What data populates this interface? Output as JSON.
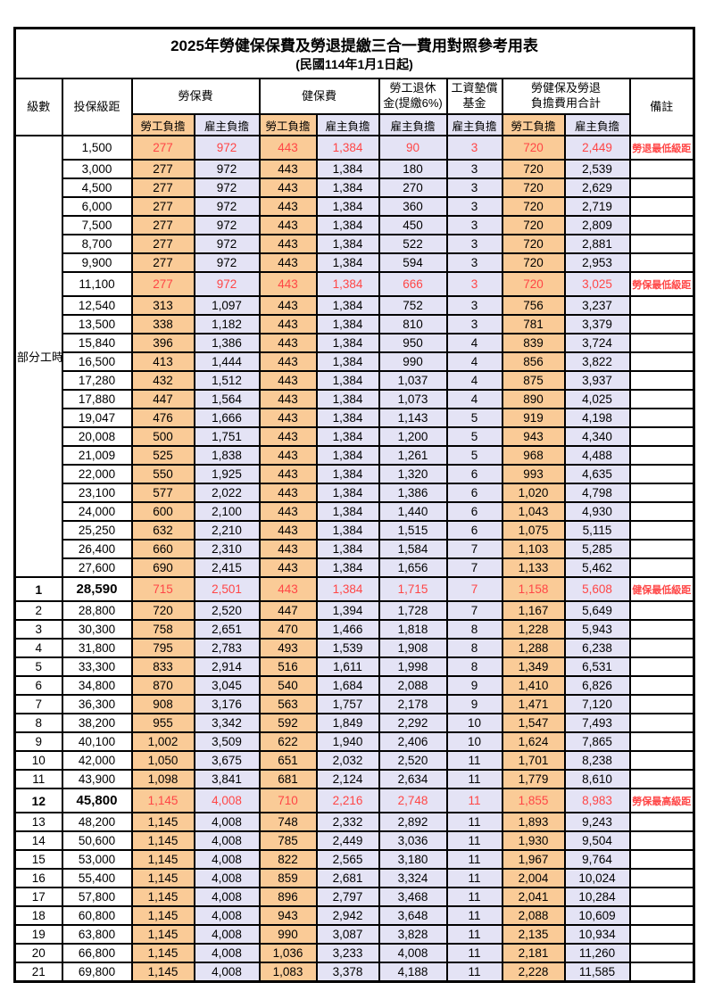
{
  "title": "2025年勞健保保費及勞退提繳三合一費用對照參考用表",
  "subtitle": "(民國114年1月1日起)",
  "header": {
    "level": "級數",
    "bracket": "投保級距",
    "labor_insurance": "勞保費",
    "health_insurance": "健保費",
    "pension": "勞工退休\n金(提繳6%)",
    "wage_fund": "工資墊償\n基金",
    "total": "勞健保及勞退\n負擔費用合計",
    "remark": "備註",
    "employee": "勞工負擔",
    "employer": "雇主負擔"
  },
  "part_time": {
    "label": "部分工時",
    "rowspan": 23
  },
  "colors": {
    "employee_bg": "#facb97",
    "employer_bg": "#e4e3f5",
    "highlight_red": "#ff4646",
    "border": "#000000"
  },
  "column_semantics": [
    "labor-employee",
    "labor-employer",
    "health-employee",
    "health-employer",
    "pension-employer",
    "wagefund-employer",
    "total-employee",
    "total-employer"
  ],
  "rows": [
    {
      "level": null,
      "bracket": "1,500",
      "values": [
        "277",
        "972",
        "443",
        "1,384",
        "90",
        "3",
        "720",
        "2,449"
      ],
      "remark": "勞退最低級距",
      "highlight": true,
      "bold": false
    },
    {
      "level": null,
      "bracket": "3,000",
      "values": [
        "277",
        "972",
        "443",
        "1,384",
        "180",
        "3",
        "720",
        "2,539"
      ],
      "remark": "",
      "highlight": false,
      "bold": false
    },
    {
      "level": null,
      "bracket": "4,500",
      "values": [
        "277",
        "972",
        "443",
        "1,384",
        "270",
        "3",
        "720",
        "2,629"
      ],
      "remark": "",
      "highlight": false,
      "bold": false
    },
    {
      "level": null,
      "bracket": "6,000",
      "values": [
        "277",
        "972",
        "443",
        "1,384",
        "360",
        "3",
        "720",
        "2,719"
      ],
      "remark": "",
      "highlight": false,
      "bold": false
    },
    {
      "level": null,
      "bracket": "7,500",
      "values": [
        "277",
        "972",
        "443",
        "1,384",
        "450",
        "3",
        "720",
        "2,809"
      ],
      "remark": "",
      "highlight": false,
      "bold": false
    },
    {
      "level": null,
      "bracket": "8,700",
      "values": [
        "277",
        "972",
        "443",
        "1,384",
        "522",
        "3",
        "720",
        "2,881"
      ],
      "remark": "",
      "highlight": false,
      "bold": false
    },
    {
      "level": null,
      "bracket": "9,900",
      "values": [
        "277",
        "972",
        "443",
        "1,384",
        "594",
        "3",
        "720",
        "2,953"
      ],
      "remark": "",
      "highlight": false,
      "bold": false
    },
    {
      "level": null,
      "bracket": "11,100",
      "values": [
        "277",
        "972",
        "443",
        "1,384",
        "666",
        "3",
        "720",
        "3,025"
      ],
      "remark": "勞保最低級距",
      "highlight": true,
      "bold": false
    },
    {
      "level": null,
      "bracket": "12,540",
      "values": [
        "313",
        "1,097",
        "443",
        "1,384",
        "752",
        "3",
        "756",
        "3,237"
      ],
      "remark": "",
      "highlight": false,
      "bold": false
    },
    {
      "level": null,
      "bracket": "13,500",
      "values": [
        "338",
        "1,182",
        "443",
        "1,384",
        "810",
        "3",
        "781",
        "3,379"
      ],
      "remark": "",
      "highlight": false,
      "bold": false
    },
    {
      "level": null,
      "bracket": "15,840",
      "values": [
        "396",
        "1,386",
        "443",
        "1,384",
        "950",
        "4",
        "839",
        "3,724"
      ],
      "remark": "",
      "highlight": false,
      "bold": false
    },
    {
      "level": null,
      "bracket": "16,500",
      "values": [
        "413",
        "1,444",
        "443",
        "1,384",
        "990",
        "4",
        "856",
        "3,822"
      ],
      "remark": "",
      "highlight": false,
      "bold": false
    },
    {
      "level": null,
      "bracket": "17,280",
      "values": [
        "432",
        "1,512",
        "443",
        "1,384",
        "1,037",
        "4",
        "875",
        "3,937"
      ],
      "remark": "",
      "highlight": false,
      "bold": false
    },
    {
      "level": null,
      "bracket": "17,880",
      "values": [
        "447",
        "1,564",
        "443",
        "1,384",
        "1,073",
        "4",
        "890",
        "4,025"
      ],
      "remark": "",
      "highlight": false,
      "bold": false
    },
    {
      "level": null,
      "bracket": "19,047",
      "values": [
        "476",
        "1,666",
        "443",
        "1,384",
        "1,143",
        "5",
        "919",
        "4,198"
      ],
      "remark": "",
      "highlight": false,
      "bold": false
    },
    {
      "level": null,
      "bracket": "20,008",
      "values": [
        "500",
        "1,751",
        "443",
        "1,384",
        "1,200",
        "5",
        "943",
        "4,340"
      ],
      "remark": "",
      "highlight": false,
      "bold": false
    },
    {
      "level": null,
      "bracket": "21,009",
      "values": [
        "525",
        "1,838",
        "443",
        "1,384",
        "1,261",
        "5",
        "968",
        "4,488"
      ],
      "remark": "",
      "highlight": false,
      "bold": false
    },
    {
      "level": null,
      "bracket": "22,000",
      "values": [
        "550",
        "1,925",
        "443",
        "1,384",
        "1,320",
        "6",
        "993",
        "4,635"
      ],
      "remark": "",
      "highlight": false,
      "bold": false
    },
    {
      "level": null,
      "bracket": "23,100",
      "values": [
        "577",
        "2,022",
        "443",
        "1,384",
        "1,386",
        "6",
        "1,020",
        "4,798"
      ],
      "remark": "",
      "highlight": false,
      "bold": false
    },
    {
      "level": null,
      "bracket": "24,000",
      "values": [
        "600",
        "2,100",
        "443",
        "1,384",
        "1,440",
        "6",
        "1,043",
        "4,930"
      ],
      "remark": "",
      "highlight": false,
      "bold": false
    },
    {
      "level": null,
      "bracket": "25,250",
      "values": [
        "632",
        "2,210",
        "443",
        "1,384",
        "1,515",
        "6",
        "1,075",
        "5,115"
      ],
      "remark": "",
      "highlight": false,
      "bold": false
    },
    {
      "level": null,
      "bracket": "26,400",
      "values": [
        "660",
        "2,310",
        "443",
        "1,384",
        "1,584",
        "7",
        "1,103",
        "5,285"
      ],
      "remark": "",
      "highlight": false,
      "bold": false
    },
    {
      "level": null,
      "bracket": "27,600",
      "values": [
        "690",
        "2,415",
        "443",
        "1,384",
        "1,656",
        "7",
        "1,133",
        "5,462"
      ],
      "remark": "",
      "highlight": false,
      "bold": false
    },
    {
      "level": "1",
      "bracket": "28,590",
      "values": [
        "715",
        "2,501",
        "443",
        "1,384",
        "1,715",
        "7",
        "1,158",
        "5,608"
      ],
      "remark": "健保最低級距",
      "highlight": true,
      "bold": true
    },
    {
      "level": "2",
      "bracket": "28,800",
      "values": [
        "720",
        "2,520",
        "447",
        "1,394",
        "1,728",
        "7",
        "1,167",
        "5,649"
      ],
      "remark": "",
      "highlight": false,
      "bold": false
    },
    {
      "level": "3",
      "bracket": "30,300",
      "values": [
        "758",
        "2,651",
        "470",
        "1,466",
        "1,818",
        "8",
        "1,228",
        "5,943"
      ],
      "remark": "",
      "highlight": false,
      "bold": false
    },
    {
      "level": "4",
      "bracket": "31,800",
      "values": [
        "795",
        "2,783",
        "493",
        "1,539",
        "1,908",
        "8",
        "1,288",
        "6,238"
      ],
      "remark": "",
      "highlight": false,
      "bold": false
    },
    {
      "level": "5",
      "bracket": "33,300",
      "values": [
        "833",
        "2,914",
        "516",
        "1,611",
        "1,998",
        "8",
        "1,349",
        "6,531"
      ],
      "remark": "",
      "highlight": false,
      "bold": false
    },
    {
      "level": "6",
      "bracket": "34,800",
      "values": [
        "870",
        "3,045",
        "540",
        "1,684",
        "2,088",
        "9",
        "1,410",
        "6,826"
      ],
      "remark": "",
      "highlight": false,
      "bold": false
    },
    {
      "level": "7",
      "bracket": "36,300",
      "values": [
        "908",
        "3,176",
        "563",
        "1,757",
        "2,178",
        "9",
        "1,471",
        "7,120"
      ],
      "remark": "",
      "highlight": false,
      "bold": false
    },
    {
      "level": "8",
      "bracket": "38,200",
      "values": [
        "955",
        "3,342",
        "592",
        "1,849",
        "2,292",
        "10",
        "1,547",
        "7,493"
      ],
      "remark": "",
      "highlight": false,
      "bold": false
    },
    {
      "level": "9",
      "bracket": "40,100",
      "values": [
        "1,002",
        "3,509",
        "622",
        "1,940",
        "2,406",
        "10",
        "1,624",
        "7,865"
      ],
      "remark": "",
      "highlight": false,
      "bold": false
    },
    {
      "level": "10",
      "bracket": "42,000",
      "values": [
        "1,050",
        "3,675",
        "651",
        "2,032",
        "2,520",
        "11",
        "1,701",
        "8,238"
      ],
      "remark": "",
      "highlight": false,
      "bold": false
    },
    {
      "level": "11",
      "bracket": "43,900",
      "values": [
        "1,098",
        "3,841",
        "681",
        "2,124",
        "2,634",
        "11",
        "1,779",
        "8,610"
      ],
      "remark": "",
      "highlight": false,
      "bold": false
    },
    {
      "level": "12",
      "bracket": "45,800",
      "values": [
        "1,145",
        "4,008",
        "710",
        "2,216",
        "2,748",
        "11",
        "1,855",
        "8,983"
      ],
      "remark": "勞保最高級距",
      "highlight": true,
      "bold": true
    },
    {
      "level": "13",
      "bracket": "48,200",
      "values": [
        "1,145",
        "4,008",
        "748",
        "2,332",
        "2,892",
        "11",
        "1,893",
        "9,243"
      ],
      "remark": "",
      "highlight": false,
      "bold": false
    },
    {
      "level": "14",
      "bracket": "50,600",
      "values": [
        "1,145",
        "4,008",
        "785",
        "2,449",
        "3,036",
        "11",
        "1,930",
        "9,504"
      ],
      "remark": "",
      "highlight": false,
      "bold": false
    },
    {
      "level": "15",
      "bracket": "53,000",
      "values": [
        "1,145",
        "4,008",
        "822",
        "2,565",
        "3,180",
        "11",
        "1,967",
        "9,764"
      ],
      "remark": "",
      "highlight": false,
      "bold": false
    },
    {
      "level": "16",
      "bracket": "55,400",
      "values": [
        "1,145",
        "4,008",
        "859",
        "2,681",
        "3,324",
        "11",
        "2,004",
        "10,024"
      ],
      "remark": "",
      "highlight": false,
      "bold": false
    },
    {
      "level": "17",
      "bracket": "57,800",
      "values": [
        "1,145",
        "4,008",
        "896",
        "2,797",
        "3,468",
        "11",
        "2,041",
        "10,284"
      ],
      "remark": "",
      "highlight": false,
      "bold": false
    },
    {
      "level": "18",
      "bracket": "60,800",
      "values": [
        "1,145",
        "4,008",
        "943",
        "2,942",
        "3,648",
        "11",
        "2,088",
        "10,609"
      ],
      "remark": "",
      "highlight": false,
      "bold": false
    },
    {
      "level": "19",
      "bracket": "63,800",
      "values": [
        "1,145",
        "4,008",
        "990",
        "3,087",
        "3,828",
        "11",
        "2,135",
        "10,934"
      ],
      "remark": "",
      "highlight": false,
      "bold": false
    },
    {
      "level": "20",
      "bracket": "66,800",
      "values": [
        "1,145",
        "4,008",
        "1,036",
        "3,233",
        "4,008",
        "11",
        "2,181",
        "11,260"
      ],
      "remark": "",
      "highlight": false,
      "bold": false
    },
    {
      "level": "21",
      "bracket": "69,800",
      "values": [
        "1,145",
        "4,008",
        "1,083",
        "3,378",
        "4,188",
        "11",
        "2,228",
        "11,585"
      ],
      "remark": "",
      "highlight": false,
      "bold": false
    }
  ]
}
